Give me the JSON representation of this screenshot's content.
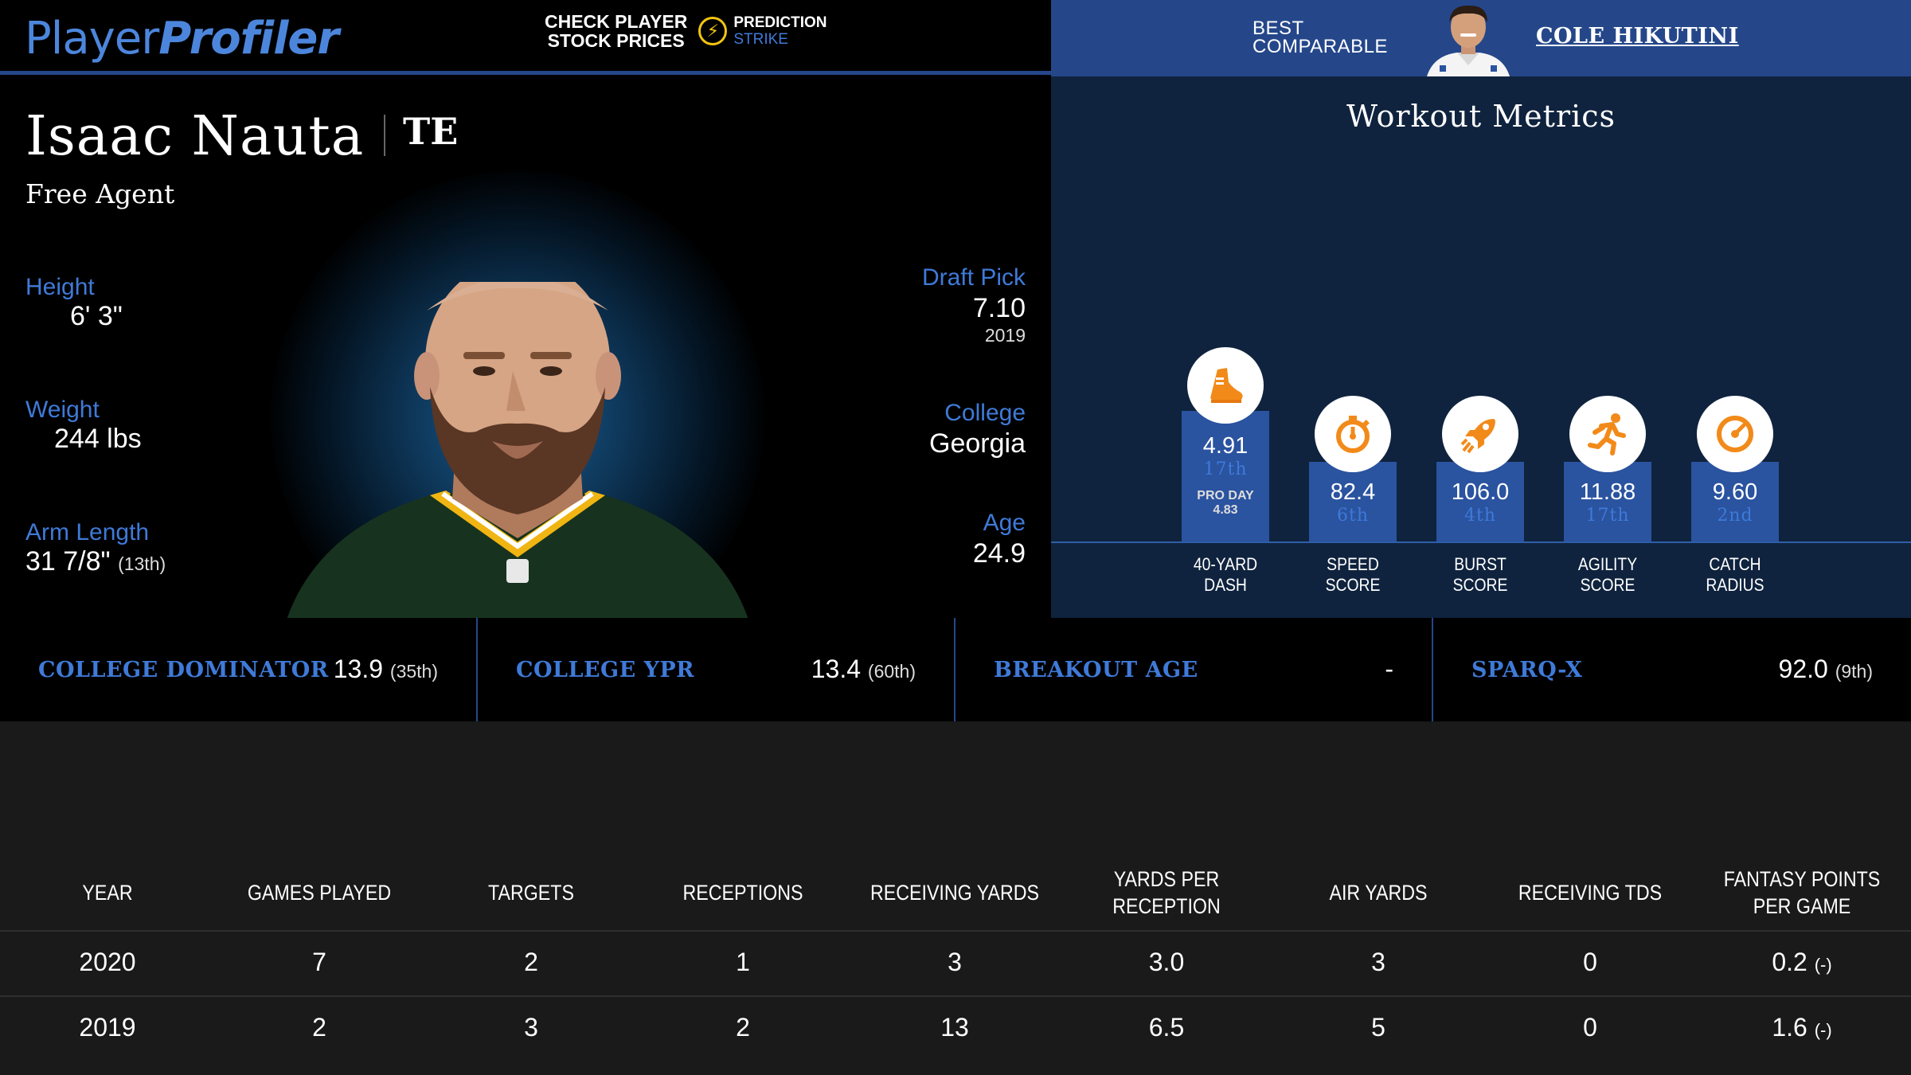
{
  "header": {
    "logo_part1": "Player",
    "logo_part2": "Profiler",
    "ad_line1": "CHECK PLAYER",
    "ad_line2": "STOCK PRICES",
    "ad_brand1": "PREDICTION",
    "ad_brand2": "STRIKE"
  },
  "comparable": {
    "label_line1": "BEST",
    "label_line2": "COMPARABLE",
    "name": "COLE HIKUTINI"
  },
  "player": {
    "name": "Isaac Nauta",
    "position": "TE",
    "team": "Free Agent",
    "height_label": "Height",
    "height": "6' 3\"",
    "weight_label": "Weight",
    "weight": "244 lbs",
    "arm_label": "Arm Length",
    "arm": "31 7/8\"",
    "arm_rank": "(13th)",
    "draft_label": "Draft Pick",
    "draft_pick": "7.10",
    "draft_year": "2019",
    "college_label": "College",
    "college": "Georgia",
    "age_label": "Age",
    "age": "24.9"
  },
  "workout": {
    "title": "Workout Metrics",
    "metrics": [
      {
        "label1": "40-YARD",
        "label2": "DASH",
        "value": "4.91",
        "rank": "17th",
        "proday_label": "PRO DAY",
        "proday_value": "4.83",
        "icon": "shoe-icon"
      },
      {
        "label1": "SPEED",
        "label2": "SCORE",
        "value": "82.4",
        "rank": "6th",
        "icon": "stopwatch-icon"
      },
      {
        "label1": "BURST",
        "label2": "SCORE",
        "value": "106.0",
        "rank": "4th",
        "icon": "rocket-icon"
      },
      {
        "label1": "AGILITY",
        "label2": "SCORE",
        "value": "11.88",
        "rank": "17th",
        "icon": "runner-icon"
      },
      {
        "label1": "CATCH",
        "label2": "RADIUS",
        "value": "9.60",
        "rank": "2nd",
        "icon": "gauge-icon"
      }
    ]
  },
  "stats": [
    {
      "label": "COLLEGE DOMINATOR",
      "value": "13.9",
      "rank": "(35th)"
    },
    {
      "label": "COLLEGE YPR",
      "value": "13.4",
      "rank": "(60th)"
    },
    {
      "label": "BREAKOUT AGE",
      "value": "-",
      "rank": ""
    },
    {
      "label": "SPARQ-X",
      "value": "92.0",
      "rank": "(9th)"
    }
  ],
  "table": {
    "headers": [
      "YEAR",
      "GAMES PLAYED",
      "TARGETS",
      "RECEPTIONS",
      "RECEIVING YARDS",
      "YARDS PER RECEPTION",
      "AIR YARDS",
      "RECEIVING TDS",
      "FANTASY POINTS PER GAME"
    ],
    "rows": [
      [
        "2020",
        "7",
        "2",
        "1",
        "3",
        "3.0",
        "3",
        "0",
        "0.2",
        "(-)"
      ],
      [
        "2019",
        "2",
        "3",
        "2",
        "13",
        "6.5",
        "5",
        "0",
        "1.6",
        "(-)"
      ]
    ]
  },
  "colors": {
    "accent_blue": "#3f7ad8",
    "header_blue": "#25478a",
    "workout_bg": "#0f233e",
    "icon_orange": "#f28a1a"
  }
}
